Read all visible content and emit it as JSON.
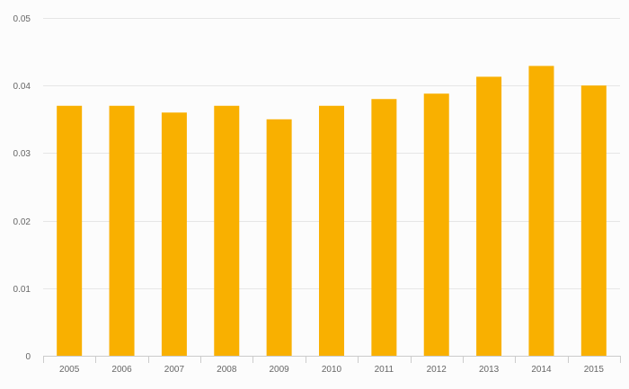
{
  "chart_data": {
    "type": "bar",
    "title": "",
    "xlabel": "",
    "ylabel": "",
    "categories": [
      "2005",
      "2006",
      "2007",
      "2008",
      "2009",
      "2010",
      "2011",
      "2012",
      "2013",
      "2014",
      "2015"
    ],
    "values": [
      0.037,
      0.037,
      0.036,
      0.037,
      0.035,
      0.037,
      0.038,
      0.0388,
      0.0413,
      0.0429,
      0.04
    ],
    "ylim": [
      0,
      0.05
    ],
    "yticks": [
      "0",
      "0.01",
      "0.02",
      "0.03",
      "0.04",
      "0.05"
    ],
    "grid": true,
    "legend": "none",
    "bar_color": "#f9b000"
  }
}
